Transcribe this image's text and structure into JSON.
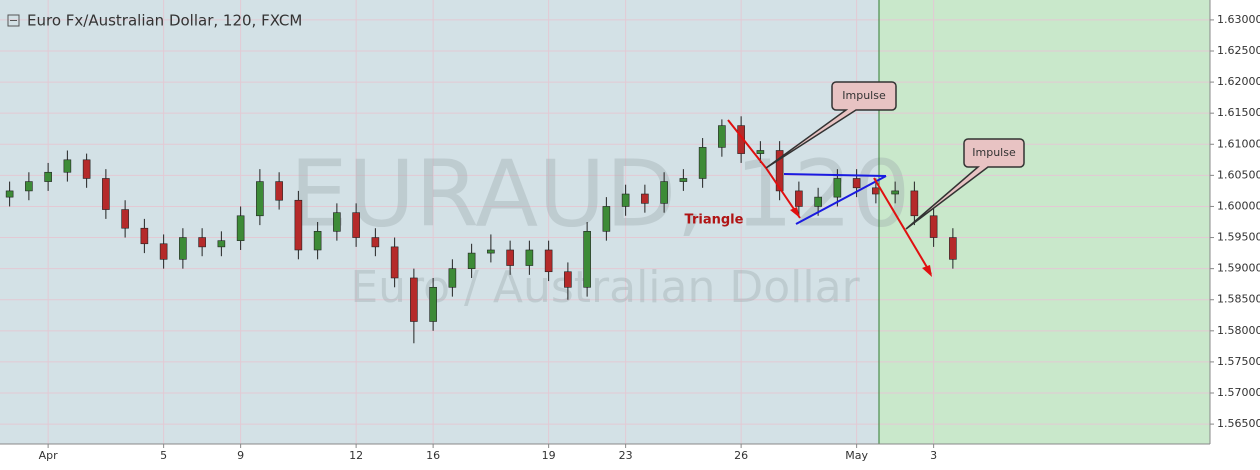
{
  "chart_data": {
    "type": "candlestick",
    "title": "Euro Fx/Australian Dollar, 120, FXCM",
    "watermark": [
      "EURAUD, 120",
      "Euro / Australian Dollar"
    ],
    "annotations": [
      "Impulse",
      "Triangle",
      "Impulse"
    ],
    "categories": [
      null,
      null,
      "Apr",
      null,
      null,
      null,
      null,
      null,
      "5",
      null,
      null,
      null,
      "9",
      null,
      null,
      null,
      null,
      null,
      "12",
      null,
      null,
      null,
      "16",
      null,
      null,
      null,
      null,
      null,
      "19",
      null,
      null,
      null,
      "23",
      null,
      null,
      null,
      null,
      null,
      "26",
      null,
      null,
      null,
      null,
      null,
      "May",
      null,
      null,
      null,
      "3",
      null
    ],
    "up_color": "#3d8b37",
    "down_color": "#b52a2a",
    "open": [
      1.6015,
      1.6025,
      1.604,
      1.6055,
      1.6075,
      1.6045,
      1.5995,
      1.5965,
      1.594,
      1.5915,
      1.595,
      1.5935,
      1.5945,
      1.5985,
      1.604,
      1.601,
      1.593,
      1.596,
      1.599,
      1.595,
      1.5935,
      1.5885,
      1.5815,
      1.587,
      1.59,
      1.5925,
      1.593,
      1.5905,
      1.593,
      1.5895,
      1.587,
      1.596,
      1.6,
      1.602,
      1.6005,
      1.604,
      1.6045,
      1.6095,
      1.613,
      1.6085,
      1.609,
      1.6025,
      1.6,
      1.6015,
      1.6045,
      1.603,
      1.602,
      1.6025,
      1.5985,
      1.595
    ],
    "high": [
      1.604,
      1.6055,
      1.607,
      1.609,
      1.6085,
      1.606,
      1.601,
      1.598,
      1.5955,
      1.5965,
      1.5965,
      1.596,
      1.6,
      1.606,
      1.6055,
      1.6025,
      1.5975,
      1.6005,
      1.6005,
      1.5965,
      1.595,
      1.59,
      1.5885,
      1.5915,
      1.594,
      1.5955,
      1.5945,
      1.5945,
      1.5945,
      1.591,
      1.5975,
      1.6015,
      1.6035,
      1.6035,
      1.6055,
      1.606,
      1.611,
      1.614,
      1.6145,
      1.6105,
      1.6105,
      1.604,
      1.603,
      1.606,
      1.606,
      1.6045,
      1.604,
      1.604,
      1.6,
      1.5965
    ],
    "low": [
      1.6,
      1.601,
      1.6025,
      1.604,
      1.603,
      1.598,
      1.595,
      1.5925,
      1.59,
      1.59,
      1.592,
      1.592,
      1.593,
      1.597,
      1.5995,
      1.5915,
      1.5915,
      1.5945,
      1.5935,
      1.592,
      1.587,
      1.578,
      1.58,
      1.5855,
      1.5885,
      1.591,
      1.589,
      1.589,
      1.588,
      1.585,
      1.5855,
      1.5945,
      1.5985,
      1.599,
      1.599,
      1.6025,
      1.603,
      1.608,
      1.607,
      1.607,
      1.601,
      1.5985,
      1.5985,
      1.6,
      1.6015,
      1.6005,
      1.6005,
      1.597,
      1.5935,
      1.59
    ],
    "close": [
      1.6025,
      1.604,
      1.6055,
      1.6075,
      1.6045,
      1.5995,
      1.5965,
      1.594,
      1.5915,
      1.595,
      1.5935,
      1.5945,
      1.5985,
      1.604,
      1.601,
      1.593,
      1.596,
      1.599,
      1.595,
      1.5935,
      1.5885,
      1.5815,
      1.587,
      1.59,
      1.5925,
      1.593,
      1.5905,
      1.593,
      1.5895,
      1.587,
      1.596,
      1.6,
      1.602,
      1.6005,
      1.604,
      1.6045,
      1.6095,
      1.613,
      1.6085,
      1.609,
      1.6025,
      1.6,
      1.6015,
      1.6045,
      1.603,
      1.602,
      1.6025,
      1.5985,
      1.595,
      1.5915
    ],
    "ylim": [
      1.5618,
      1.6332
    ],
    "yticks": [
      {
        "value": 1.565,
        "label": "1.56500"
      },
      {
        "value": 1.57,
        "label": "1.57000"
      },
      {
        "value": 1.575,
        "label": "1.57500"
      },
      {
        "value": 1.58,
        "label": "1.58000"
      },
      {
        "value": 1.585,
        "label": "1.58500"
      },
      {
        "value": 1.59,
        "label": "1.59000"
      },
      {
        "value": 1.595,
        "label": "1.59500"
      },
      {
        "value": 1.6,
        "label": "1.60000"
      },
      {
        "value": 1.605,
        "label": "1.60500"
      },
      {
        "value": 1.61,
        "label": "1.61000"
      },
      {
        "value": 1.615,
        "label": "1.61500"
      },
      {
        "value": 1.62,
        "label": "1.62000"
      },
      {
        "value": 1.625,
        "label": "1.62500"
      },
      {
        "value": 1.63,
        "label": "1.63000"
      }
    ],
    "grid": true
  }
}
